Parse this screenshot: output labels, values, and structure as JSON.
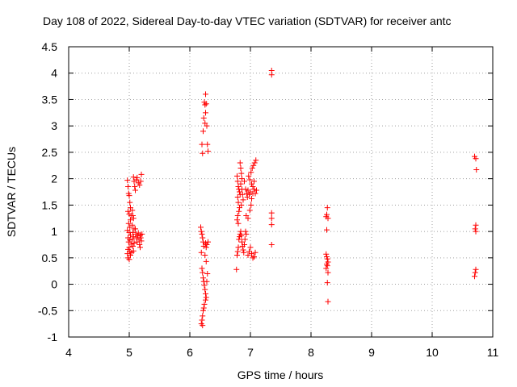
{
  "chart_data": {
    "type": "scatter",
    "title": "Day 108 of 2022, Sidereal Day-to-day VTEC variation (SDTVAR) for receiver antc",
    "xlabel": "GPS time / hours",
    "ylabel": "SDTVAR / TECUs",
    "xlim": [
      4,
      11
    ],
    "ylim": [
      -1,
      4.5
    ],
    "x_ticks": [
      4,
      5,
      6,
      7,
      8,
      9,
      10,
      11
    ],
    "y_ticks": [
      -1,
      -0.5,
      0,
      0.5,
      1,
      1.5,
      2,
      2.5,
      3,
      3.5,
      4,
      4.5
    ],
    "x_tick_labels": [
      "4",
      "5",
      "6",
      "7",
      "8",
      "9",
      "10",
      "11"
    ],
    "y_tick_labels": [
      "-1",
      "-0.5",
      "0",
      "0.5",
      "1",
      "1.5",
      "2",
      "2.5",
      "3",
      "3.5",
      "4",
      "4.5"
    ],
    "grid": true,
    "marker": "+",
    "marker_color": "#ff0000",
    "series": [
      {
        "name": "SDTVAR",
        "points": [
          [
            4.97,
            1.97
          ],
          [
            4.98,
            1.85
          ],
          [
            4.99,
            1.72
          ],
          [
            5.0,
            1.68
          ],
          [
            5.01,
            1.55
          ],
          [
            5.02,
            1.45
          ],
          [
            4.98,
            1.38
          ],
          [
            5.0,
            1.33
          ],
          [
            5.03,
            1.3
          ],
          [
            5.02,
            1.22
          ],
          [
            4.99,
            1.15
          ],
          [
            5.01,
            1.08
          ],
          [
            4.97,
            1.02
          ],
          [
            5.0,
            0.98
          ],
          [
            5.02,
            0.93
          ],
          [
            4.98,
            0.88
          ],
          [
            5.01,
            0.84
          ],
          [
            4.99,
            0.8
          ],
          [
            5.03,
            0.76
          ],
          [
            5.0,
            0.7
          ],
          [
            4.98,
            0.66
          ],
          [
            5.01,
            0.62
          ],
          [
            4.97,
            0.58
          ],
          [
            5.02,
            0.55
          ],
          [
            4.98,
            0.5
          ],
          [
            5.0,
            0.47
          ],
          [
            5.05,
            1.4
          ],
          [
            5.06,
            1.3
          ],
          [
            5.07,
            1.25
          ],
          [
            5.05,
            1.12
          ],
          [
            5.08,
            1.05
          ],
          [
            5.06,
            0.98
          ],
          [
            5.07,
            0.9
          ],
          [
            5.05,
            0.85
          ],
          [
            5.08,
            0.78
          ],
          [
            5.06,
            0.72
          ],
          [
            5.07,
            0.63
          ],
          [
            5.04,
            0.6
          ],
          [
            5.07,
            2.03
          ],
          [
            5.08,
            1.95
          ],
          [
            5.09,
            1.85
          ],
          [
            5.1,
            1.78
          ],
          [
            5.12,
            1.98
          ],
          [
            5.13,
            2.02
          ],
          [
            5.15,
            1.92
          ],
          [
            5.17,
            1.88
          ],
          [
            5.19,
            1.95
          ],
          [
            5.2,
            2.08
          ],
          [
            5.1,
            1.05
          ],
          [
            5.11,
            0.95
          ],
          [
            5.12,
            0.88
          ],
          [
            5.13,
            0.8
          ],
          [
            5.14,
            0.92
          ],
          [
            5.15,
            0.97
          ],
          [
            5.16,
            0.85
          ],
          [
            5.17,
            0.75
          ],
          [
            5.18,
            0.93
          ],
          [
            5.19,
            0.88
          ],
          [
            5.2,
            0.82
          ],
          [
            5.21,
            0.95
          ],
          [
            5.18,
            0.7
          ],
          [
            6.26,
            3.6
          ],
          [
            6.24,
            3.45
          ],
          [
            6.25,
            3.4
          ],
          [
            6.27,
            3.42
          ],
          [
            6.26,
            3.25
          ],
          [
            6.23,
            3.15
          ],
          [
            6.25,
            3.05
          ],
          [
            6.28,
            3.0
          ],
          [
            6.22,
            2.9
          ],
          [
            6.2,
            2.65
          ],
          [
            6.29,
            2.65
          ],
          [
            6.21,
            2.48
          ],
          [
            6.3,
            2.52
          ],
          [
            6.18,
            1.08
          ],
          [
            6.19,
            1.0
          ],
          [
            6.2,
            0.95
          ],
          [
            6.21,
            0.88
          ],
          [
            6.22,
            0.8
          ],
          [
            6.23,
            0.72
          ],
          [
            6.26,
            0.78
          ],
          [
            6.27,
            0.7
          ],
          [
            6.28,
            0.75
          ],
          [
            6.3,
            0.8
          ],
          [
            6.25,
            0.55
          ],
          [
            6.27,
            0.43
          ],
          [
            6.19,
            0.6
          ],
          [
            6.2,
            0.3
          ],
          [
            6.21,
            0.22
          ],
          [
            6.22,
            0.12
          ],
          [
            6.23,
            0.05
          ],
          [
            6.24,
            -0.02
          ],
          [
            6.25,
            -0.1
          ],
          [
            6.26,
            -0.18
          ],
          [
            6.27,
            -0.25
          ],
          [
            6.28,
            0.05
          ],
          [
            6.29,
            0.2
          ],
          [
            6.26,
            -0.3
          ],
          [
            6.24,
            -0.38
          ],
          [
            6.23,
            -0.45
          ],
          [
            6.22,
            -0.5
          ],
          [
            6.21,
            -0.6
          ],
          [
            6.2,
            -0.68
          ],
          [
            6.19,
            -0.75
          ],
          [
            6.21,
            -0.78
          ],
          [
            6.78,
            2.05
          ],
          [
            6.79,
            1.95
          ],
          [
            6.8,
            1.85
          ],
          [
            6.81,
            1.8
          ],
          [
            6.82,
            1.75
          ],
          [
            6.83,
            1.7
          ],
          [
            6.79,
            1.65
          ],
          [
            6.8,
            1.55
          ],
          [
            6.82,
            1.45
          ],
          [
            6.81,
            1.38
          ],
          [
            6.79,
            1.3
          ],
          [
            6.78,
            1.22
          ],
          [
            6.8,
            1.15
          ],
          [
            6.83,
            2.3
          ],
          [
            6.84,
            2.2
          ],
          [
            6.85,
            2.1
          ],
          [
            6.86,
            2.0
          ],
          [
            6.84,
            1.9
          ],
          [
            6.86,
            1.8
          ],
          [
            6.87,
            1.7
          ],
          [
            6.88,
            1.6
          ],
          [
            6.85,
            1.5
          ],
          [
            6.9,
            1.95
          ],
          [
            6.92,
            1.8
          ],
          [
            6.94,
            1.72
          ],
          [
            6.95,
            1.65
          ],
          [
            6.96,
            1.78
          ],
          [
            6.98,
            1.7
          ],
          [
            7.0,
            1.75
          ],
          [
            7.02,
            1.62
          ],
          [
            7.04,
            1.72
          ],
          [
            7.06,
            1.8
          ],
          [
            7.08,
            1.72
          ],
          [
            7.1,
            1.78
          ],
          [
            6.93,
            1.3
          ],
          [
            6.96,
            1.25
          ],
          [
            6.99,
            1.4
          ],
          [
            7.01,
            1.5
          ],
          [
            6.97,
            2.05
          ],
          [
            6.99,
            1.98
          ],
          [
            7.01,
            2.12
          ],
          [
            7.03,
            2.2
          ],
          [
            7.05,
            2.25
          ],
          [
            7.07,
            2.3
          ],
          [
            7.09,
            2.35
          ],
          [
            7.02,
            1.9
          ],
          [
            7.04,
            1.85
          ],
          [
            7.06,
            1.95
          ],
          [
            6.77,
            0.28
          ],
          [
            6.78,
            0.55
          ],
          [
            6.79,
            0.62
          ],
          [
            6.8,
            0.7
          ],
          [
            6.81,
            0.85
          ],
          [
            6.82,
            0.9
          ],
          [
            6.83,
            0.95
          ],
          [
            6.84,
            1.0
          ],
          [
            6.85,
            0.92
          ],
          [
            6.86,
            0.8
          ],
          [
            6.87,
            0.72
          ],
          [
            6.88,
            0.65
          ],
          [
            6.89,
            0.6
          ],
          [
            6.9,
            0.75
          ],
          [
            6.91,
            0.85
          ],
          [
            6.92,
            1.0
          ],
          [
            6.93,
            0.95
          ],
          [
            6.96,
            0.55
          ],
          [
            6.98,
            0.62
          ],
          [
            7.0,
            0.7
          ],
          [
            7.02,
            0.58
          ],
          [
            7.04,
            0.5
          ],
          [
            7.06,
            0.52
          ],
          [
            7.08,
            0.6
          ],
          [
            7.35,
            4.05
          ],
          [
            7.35,
            3.97
          ],
          [
            7.35,
            1.35
          ],
          [
            7.35,
            1.25
          ],
          [
            7.35,
            1.13
          ],
          [
            7.35,
            0.75
          ],
          [
            8.27,
            1.45
          ],
          [
            8.26,
            1.32
          ],
          [
            8.25,
            1.28
          ],
          [
            8.28,
            1.25
          ],
          [
            8.26,
            1.03
          ],
          [
            8.25,
            0.57
          ],
          [
            8.26,
            0.52
          ],
          [
            8.27,
            0.48
          ],
          [
            8.28,
            0.42
          ],
          [
            8.26,
            0.38
          ],
          [
            8.27,
            0.35
          ],
          [
            8.25,
            0.3
          ],
          [
            8.28,
            0.22
          ],
          [
            8.27,
            0.03
          ],
          [
            8.28,
            -0.33
          ],
          [
            10.7,
            2.42
          ],
          [
            10.72,
            2.38
          ],
          [
            10.73,
            2.17
          ],
          [
            10.72,
            1.12
          ],
          [
            10.71,
            1.05
          ],
          [
            10.72,
            1.0
          ],
          [
            10.72,
            0.28
          ],
          [
            10.71,
            0.22
          ],
          [
            10.7,
            0.15
          ]
        ]
      }
    ]
  }
}
